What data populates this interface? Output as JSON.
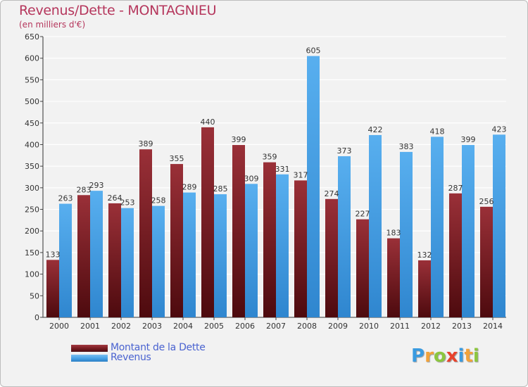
{
  "header": {
    "title": "Revenus/Dette - MONTAGNIEU",
    "subtitle": "(en milliers d'€)"
  },
  "logo": {
    "text": "Proxiti",
    "letters": [
      {
        "ch": "P",
        "color": "#3a9be0"
      },
      {
        "ch": "r",
        "color": "#f2a23a"
      },
      {
        "ch": "o",
        "color": "#8cc63f"
      },
      {
        "ch": "x",
        "color": "#e8432c"
      },
      {
        "ch": "i",
        "color": "#3a9be0"
      },
      {
        "ch": "t",
        "color": "#f2a23a"
      },
      {
        "ch": "i",
        "color": "#8cc63f"
      }
    ]
  },
  "colors": {
    "dette": "#7a1c22",
    "revenus": "#4aa3e6",
    "title": "#b5365c",
    "legend_text": "#4a63d0",
    "grid": "#ffffff",
    "plot_bg": "#f2f2f2"
  },
  "chart_data": {
    "type": "bar",
    "title": "Revenus/Dette - MONTAGNIEU",
    "ylabel": "(en milliers d'€)",
    "xlabel": "",
    "ylim": [
      0,
      650
    ],
    "yticks": [
      0,
      50,
      100,
      150,
      200,
      250,
      300,
      350,
      400,
      450,
      500,
      550,
      600,
      650
    ],
    "grid": true,
    "legend_position": "bottom-left",
    "categories": [
      "2000",
      "2001",
      "2002",
      "2003",
      "2004",
      "2005",
      "2006",
      "2007",
      "2008",
      "2009",
      "2010",
      "2011",
      "2012",
      "2013",
      "2014"
    ],
    "series": [
      {
        "name": "Montant de la Dette",
        "color": "#7a1c22",
        "values": [
          133,
          283,
          264,
          389,
          355,
          440,
          399,
          359,
          317,
          274,
          227,
          183,
          132,
          287,
          256
        ]
      },
      {
        "name": "Revenus",
        "color": "#4aa3e6",
        "values": [
          263,
          293,
          253,
          258,
          289,
          285,
          309,
          331,
          605,
          373,
          422,
          383,
          418,
          399,
          423
        ]
      }
    ]
  }
}
